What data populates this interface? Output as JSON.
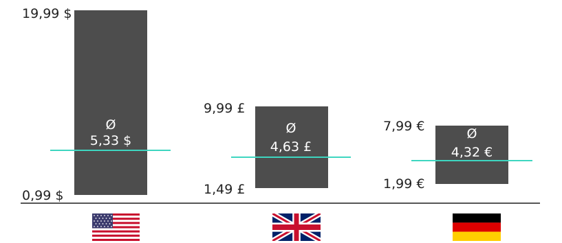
{
  "chart_data": {
    "type": "bar",
    "categories": [
      "USA",
      "UK",
      "Germany"
    ],
    "series": [
      {
        "min_values": [
          0.99,
          1.49,
          1.99
        ],
        "max_values": [
          19.99,
          9.99,
          7.99
        ],
        "average_values": [
          5.33,
          4.63,
          4.32
        ]
      }
    ],
    "labels": {
      "usa": {
        "max": "19,99 $",
        "min": "0,99 $",
        "avg_symbol": "Ø",
        "avg": "5,33 $"
      },
      "uk": {
        "max": "9,99 £",
        "min": "1,49 £",
        "avg_symbol": "Ø",
        "avg": "4,63 £"
      },
      "germany": {
        "max": "7,99 €",
        "min": "1,99 €",
        "avg_symbol": "Ø",
        "avg": "4,32 €"
      }
    },
    "colors": {
      "bar": "#4d4d4d",
      "average_line": "#3ed6c0",
      "baseline": "#555555"
    },
    "flags": [
      "us-flag-icon",
      "uk-flag-icon",
      "germany-flag-icon"
    ]
  }
}
